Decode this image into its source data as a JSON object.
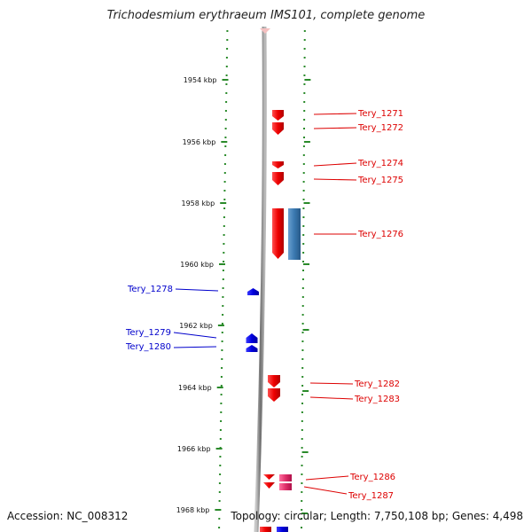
{
  "title": "Trichodesmium erythraeum IMS101, complete genome",
  "footer": {
    "accession": "Accession: NC_008312",
    "summary": "Topology: circular; Length: 7,750,108 bp; Genes: 4,498"
  },
  "axis": {
    "unit": "kbp",
    "ticks": [
      "1954 kbp",
      "1956 kbp",
      "1958 kbp",
      "1960 kbp",
      "1962 kbp",
      "1964 kbp",
      "1966 kbp",
      "1968 kbp"
    ]
  },
  "genes": [
    {
      "name": "Tery_1271",
      "strand": "+",
      "color": "#dd0000"
    },
    {
      "name": "Tery_1272",
      "strand": "+",
      "color": "#dd0000"
    },
    {
      "name": "Tery_1274",
      "strand": "+",
      "color": "#dd0000"
    },
    {
      "name": "Tery_1275",
      "strand": "+",
      "color": "#dd0000"
    },
    {
      "name": "Tery_1276",
      "strand": "+",
      "color": "#dd0000"
    },
    {
      "name": "Tery_1278",
      "strand": "-",
      "color": "#0000cc"
    },
    {
      "name": "Tery_1279",
      "strand": "-",
      "color": "#0000cc"
    },
    {
      "name": "Tery_1280",
      "strand": "-",
      "color": "#0000cc"
    },
    {
      "name": "Tery_1282",
      "strand": "+",
      "color": "#dd0000"
    },
    {
      "name": "Tery_1283",
      "strand": "+",
      "color": "#dd0000"
    },
    {
      "name": "Tery_1286",
      "strand": "+",
      "color": "#dd0000"
    },
    {
      "name": "Tery_1287",
      "strand": "+",
      "color": "#dd0000"
    }
  ],
  "colors": {
    "forward": "#dd0000",
    "reverse": "#0000cc",
    "rna": "#3a78b0",
    "pink": "#e0306a",
    "ruler": "#2a8a2a",
    "backbone": "#808080"
  }
}
